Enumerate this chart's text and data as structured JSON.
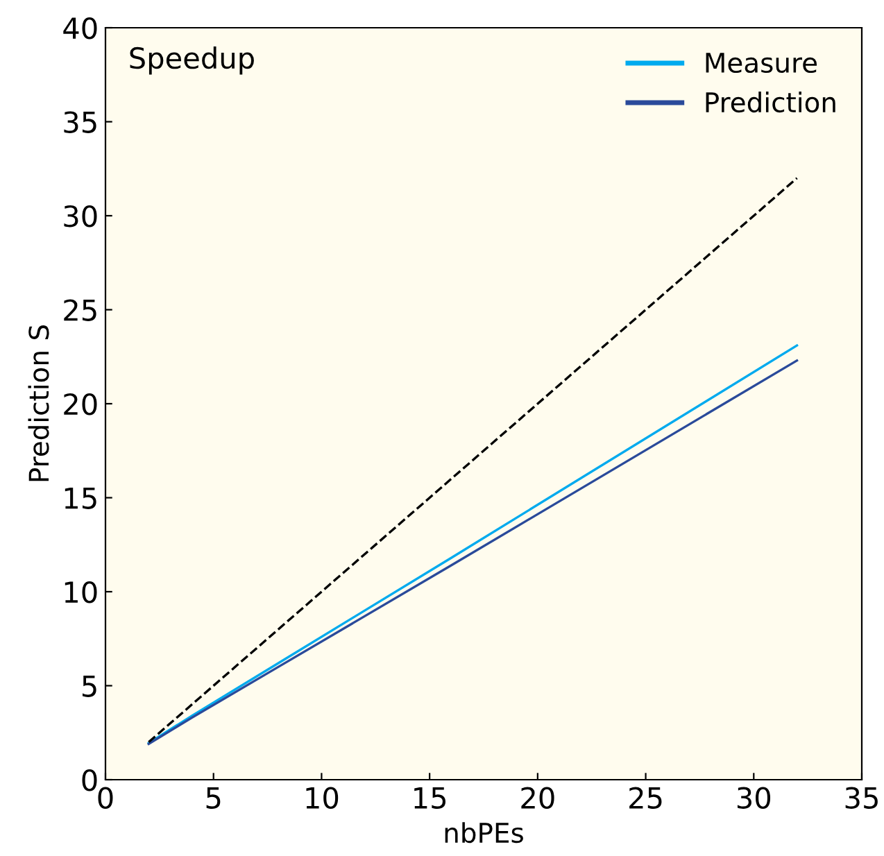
{
  "chart_data": {
    "type": "line",
    "title": "Speedup",
    "xlabel": "nbPEs",
    "ylabel": "Prediction S",
    "xlim": [
      0,
      35
    ],
    "ylim": [
      0,
      40
    ],
    "xticks": [
      0,
      5,
      10,
      15,
      20,
      25,
      30,
      35
    ],
    "yticks": [
      0,
      5,
      10,
      15,
      20,
      25,
      30,
      35,
      40
    ],
    "grid": false,
    "legend": "top right",
    "marker": "none",
    "series": [
      {
        "name": "Measure",
        "color": "#00aaee",
        "x": [
          2,
          4,
          8,
          16,
          32
        ],
        "values": [
          1.95,
          3.4,
          6.2,
          11.8,
          23.1
        ]
      },
      {
        "name": "Prediction",
        "color": "#2a4a9a",
        "x": [
          2,
          4,
          8,
          16,
          32
        ],
        "values": [
          1.9,
          3.3,
          6.0,
          11.4,
          22.3
        ]
      },
      {
        "color": "#000000",
        "line_style": "dashed",
        "x": [
          2,
          32
        ],
        "values": [
          2,
          32
        ]
      }
    ]
  }
}
